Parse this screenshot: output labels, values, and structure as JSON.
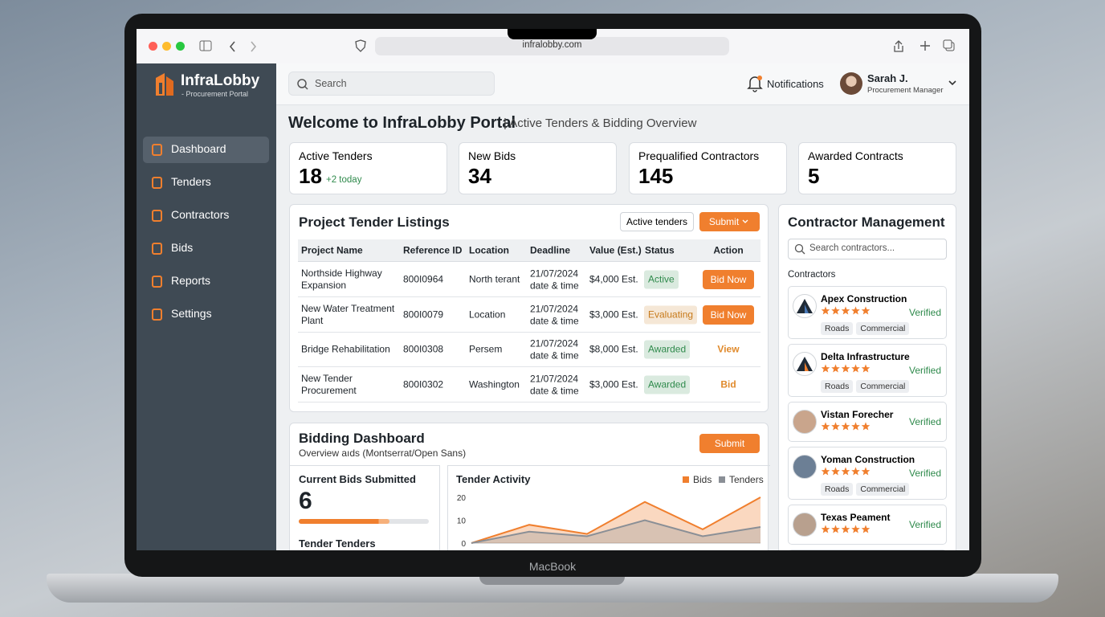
{
  "browser": {
    "url": "infralobby.com"
  },
  "device": {
    "label": "MacBook"
  },
  "sidebar": {
    "brand": "InfraLobby",
    "tagline": "- Procurement Portal",
    "nav": [
      "Dashboard",
      "Tenders",
      "Contractors",
      "Bids",
      "Reports",
      "Settings"
    ],
    "active": 0
  },
  "topbar": {
    "search": "Search",
    "notifications": "Notifications",
    "user_name": "Sarah J.",
    "user_role": "Procurement Manager"
  },
  "heading": {
    "title": "Welcome to InfraLobby Portal",
    "subtitle": "| Active Tenders & Bidding Overview"
  },
  "stats": [
    {
      "label": "Active Tenders",
      "value": 18,
      "note": "+2 today"
    },
    {
      "label": "New Bids",
      "value": 34
    },
    {
      "label": "Prequalified Contractors",
      "value": 145
    },
    {
      "label": "Awarded Contracts",
      "value": 5
    }
  ],
  "tenders": {
    "title": "Project Tender Listings",
    "filter": "Active tenders",
    "button": "Submit",
    "columns": [
      "Project Name",
      "Reference ID",
      "Location",
      "Deadline",
      "Value (Est.)",
      "Status",
      "Action"
    ],
    "rows": [
      {
        "project": "Northside Highway Expansion",
        "ref": "800I0964",
        "location": "North terant",
        "date": "21/07/2024",
        "time": "date & time",
        "value": "$4,000 Est.",
        "status": "Active",
        "status_color": "#2f8a4c",
        "action": "Bid Now",
        "action_style": "button"
      },
      {
        "project": "New Water Treatment Plant",
        "ref": "800I0079",
        "location": "Location",
        "date": "21/07/2024",
        "time": "date & time",
        "value": "$3,000 Est.",
        "status": "Evaluating",
        "status_color": "#c77a1a",
        "action": "Bid Now",
        "action_style": "button"
      },
      {
        "project": "Bridge Rehabilitation",
        "ref": "800I0308",
        "location": "Persem",
        "date": "21/07/2024",
        "time": "date & time",
        "value": "$8,000 Est.",
        "status": "Awarded",
        "status_color": "#2f8a4c",
        "action": "View",
        "action_style": "link"
      },
      {
        "project": "New Tender Procurement",
        "ref": "800I0302",
        "location": "Washington",
        "date": "21/07/2024",
        "time": "date & time",
        "value": "$3,000 Est.",
        "status": "Awarded",
        "status_color": "#2f8a4c",
        "action": "Bid",
        "action_style": "link"
      }
    ]
  },
  "contractors": {
    "title": "Contractor Management",
    "search": "Search contractors...",
    "label": "Contractors",
    "items": [
      {
        "name": "Apex Construction",
        "status": "Verified",
        "tags": [
          "Roads",
          "Commercial"
        ]
      },
      {
        "name": "Delta Infrastructure",
        "status": "Verified",
        "tags": [
          "Roads",
          "Commercial"
        ]
      },
      {
        "name": "Vistan Forecher",
        "status": "Verified",
        "tags": []
      },
      {
        "name": "Yoman Construction",
        "status": "Verified",
        "tags": [
          "Roads",
          "Commercial"
        ]
      },
      {
        "name": "Texas Peament",
        "status": "Verified",
        "tags": []
      }
    ]
  },
  "bidding": {
    "title": "Bidding Dashboard",
    "subtitle": "Overview aıds (Montserrat/Open Sans)",
    "button": "Submit",
    "current_label": "Current Bids Submitted",
    "current_value": 6,
    "next_label": "Tender Tenders",
    "activity": {
      "type": "line",
      "title": "Tender Activity",
      "ylim": [
        0,
        20
      ],
      "yticks": [
        0,
        10,
        20
      ],
      "series": [
        {
          "name": "Bids",
          "color": "#f07f2e",
          "values": [
            0,
            8,
            4,
            18,
            6,
            20
          ]
        },
        {
          "name": "Tenders",
          "color": "#8a8f96",
          "values": [
            0,
            5,
            3,
            10,
            3,
            7
          ]
        }
      ]
    }
  }
}
